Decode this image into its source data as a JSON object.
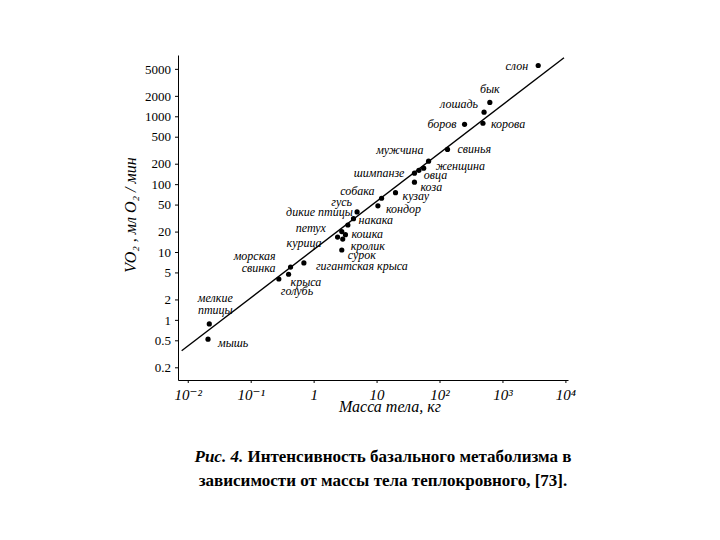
{
  "chart_data": {
    "type": "scatter",
    "log": true,
    "x_label": "Масса тела, кг",
    "y_label": "VO₂ , мл O₂ / мин",
    "caption_label": "Рис. 4.",
    "caption": [
      "Интенсивность базального метаболизма в",
      "зависимости от массы тела теплокровного, [73]."
    ],
    "xlim": [
      0.007,
      11000
    ],
    "ylim": [
      0.13,
      8000
    ],
    "xticks": [
      {
        "value": 0.01,
        "label": "10⁻²"
      },
      {
        "value": 0.1,
        "label": "10⁻¹"
      },
      1,
      10,
      {
        "value": 100,
        "label": "10²"
      },
      {
        "value": 1000,
        "label": "10³"
      },
      {
        "value": 10000,
        "label": "10⁴"
      }
    ],
    "yticks": [
      0.2,
      0.5,
      1,
      2,
      5,
      10,
      20,
      50,
      100,
      200,
      500,
      1000,
      2000,
      5000
    ],
    "series": [
      {
        "type": "scatter",
        "color": "#000000",
        "marker": "circle",
        "labels": [
          "слон",
          "бык",
          "лошадь",
          "корова",
          "боров",
          "свинья",
          "мужчина",
          "женщина",
          "шимпанзе",
          "овца",
          "коза",
          "собака",
          "кузау",
          "кондор",
          "гусь",
          "дикие птицы",
          "накака",
          "петух",
          "кошка",
          "курица",
          "кролик",
          "сурок",
          "гигантская крыса",
          "морская свинка",
          "крыса",
          "голубь",
          "мелкие птицы",
          "мышь"
        ],
        "x": [
          3700,
          630,
          510,
          490,
          250,
          134,
          67,
          56,
          40,
          47,
          40,
          12,
          20,
          10.5,
          4.9,
          3.5,
          4.3,
          2.8,
          3.2,
          2.4,
          2.9,
          2.8,
          0.7,
          0.43,
          0.4,
          0.28,
          0.022,
          0.021
        ],
        "values": [
          5600,
          1600,
          1150,
          790,
          760,
          325,
          218,
          172,
          145,
          160,
          107,
          62,
          75,
          48,
          39,
          25,
          31,
          20,
          18,
          16.6,
          15.5,
          10.7,
          6.9,
          6.0,
          4.7,
          4.0,
          0.87,
          0.52
        ]
      },
      {
        "type": "line",
        "color": "#000000",
        "line_style": "solid",
        "x": [
          0.008,
          9500
        ],
        "values": [
          0.35,
          7300
        ]
      }
    ]
  }
}
